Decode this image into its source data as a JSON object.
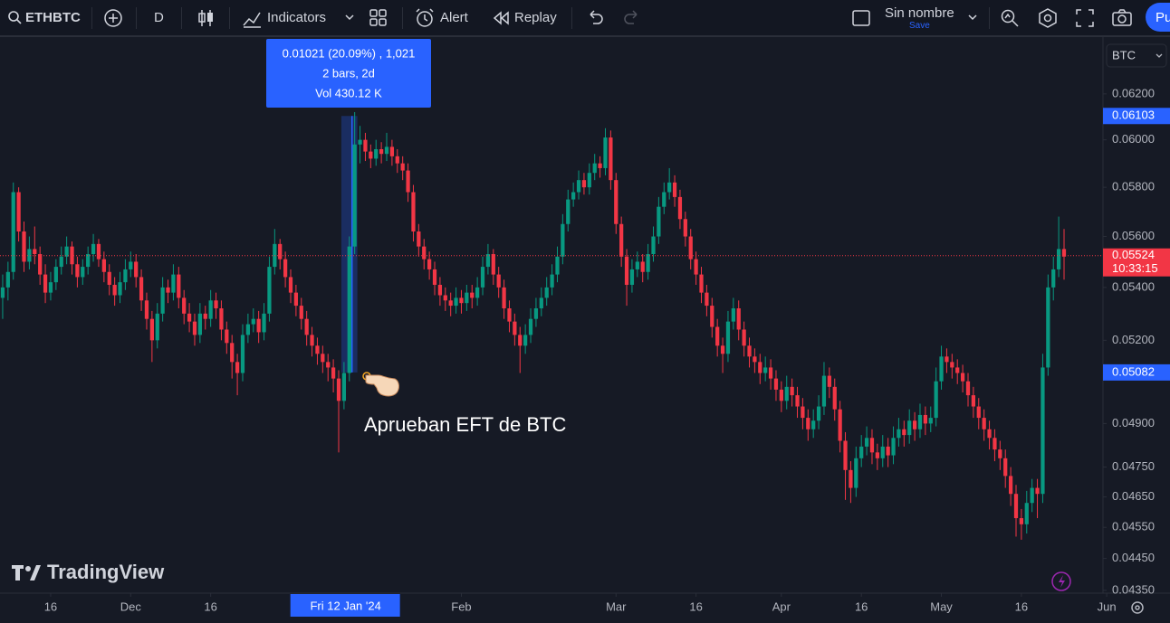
{
  "toolbar": {
    "symbol": "ETHBTC",
    "interval": "D",
    "indicators": "Indicators",
    "alert": "Alert",
    "replay": "Replay",
    "layout_name": "Sin nombre",
    "save": "Save",
    "publish": "Pu"
  },
  "chart_data": {
    "type": "candlestick",
    "currency": "BTC",
    "log_scale": true,
    "grid": false,
    "up_color": "#089981",
    "down_color": "#f23645",
    "ylim": [
      0.0433,
      0.0644
    ],
    "yticks": [
      {
        "value": 0.062,
        "label": "0.06200"
      },
      {
        "value": 0.06,
        "label": "0.06000"
      },
      {
        "value": 0.058,
        "label": "0.05800"
      },
      {
        "value": 0.056,
        "label": "0.05600"
      },
      {
        "value": 0.054,
        "label": "0.05400"
      },
      {
        "value": 0.052,
        "label": "0.05200"
      },
      {
        "value": 0.049,
        "label": "0.04900"
      },
      {
        "value": 0.0475,
        "label": "0.04750"
      },
      {
        "value": 0.0465,
        "label": "0.04650"
      },
      {
        "value": 0.0455,
        "label": "0.04550"
      },
      {
        "value": 0.0445,
        "label": "0.04450"
      },
      {
        "value": 0.0435,
        "label": "0.04350"
      }
    ],
    "xlim": [
      -0.5,
      206.3
    ],
    "xticks": [
      {
        "value": 9,
        "label": "16"
      },
      {
        "value": 24,
        "label": "Dec"
      },
      {
        "value": 39,
        "label": "16"
      },
      {
        "value": 86,
        "label": "Feb"
      },
      {
        "value": 115,
        "label": "Mar"
      },
      {
        "value": 130,
        "label": "16"
      },
      {
        "value": 146,
        "label": "Apr"
      },
      {
        "value": 161,
        "label": "16"
      },
      {
        "value": 176,
        "label": "May"
      },
      {
        "value": 191,
        "label": "16"
      },
      {
        "value": 207,
        "label": "Jun"
      }
    ],
    "crosshair": {
      "value": 66,
      "label": "Fri 12 Jan '24"
    },
    "last_price": 0.05524,
    "countdown": "10:33:15",
    "measure": {
      "from": 0.05082,
      "to": 0.06103,
      "lines": [
        "0.01021 (20.09%) , 1,021",
        "2 bars, 2d",
        "Vol 430.12 K"
      ]
    },
    "annotation": "Aprueban EFT de BTC",
    "watermark": "TradingView",
    "ohlc": [
      [
        0.0536,
        0.0545,
        0.0528,
        0.054
      ],
      [
        0.054,
        0.055,
        0.0535,
        0.0546
      ],
      [
        0.0546,
        0.0582,
        0.0543,
        0.0578
      ],
      [
        0.0578,
        0.058,
        0.0558,
        0.0562
      ],
      [
        0.0562,
        0.0566,
        0.0546,
        0.055
      ],
      [
        0.055,
        0.056,
        0.0547,
        0.0555
      ],
      [
        0.0555,
        0.0564,
        0.0549,
        0.0553
      ],
      [
        0.0553,
        0.0556,
        0.0541,
        0.0545
      ],
      [
        0.0545,
        0.0549,
        0.0534,
        0.0538
      ],
      [
        0.0538,
        0.0546,
        0.0535,
        0.0542
      ],
      [
        0.0542,
        0.0551,
        0.0539,
        0.0548
      ],
      [
        0.0548,
        0.0556,
        0.0545,
        0.0552
      ],
      [
        0.0552,
        0.056,
        0.0549,
        0.0556
      ],
      [
        0.0556,
        0.0558,
        0.0545,
        0.0549
      ],
      [
        0.0549,
        0.0552,
        0.054,
        0.0544
      ],
      [
        0.0544,
        0.0551,
        0.0541,
        0.0548
      ],
      [
        0.0548,
        0.0556,
        0.0545,
        0.0553
      ],
      [
        0.0553,
        0.0561,
        0.055,
        0.0557
      ],
      [
        0.0557,
        0.0559,
        0.0548,
        0.0551
      ],
      [
        0.0551,
        0.0554,
        0.0542,
        0.0546
      ],
      [
        0.0546,
        0.0549,
        0.0537,
        0.0541
      ],
      [
        0.0541,
        0.0544,
        0.0533,
        0.0537
      ],
      [
        0.0537,
        0.0546,
        0.0534,
        0.0542
      ],
      [
        0.0542,
        0.0551,
        0.0539,
        0.0547
      ],
      [
        0.0547,
        0.0554,
        0.0544,
        0.055
      ],
      [
        0.055,
        0.0553,
        0.054,
        0.0544
      ],
      [
        0.0544,
        0.0547,
        0.0531,
        0.0535
      ],
      [
        0.0535,
        0.0538,
        0.0524,
        0.0528
      ],
      [
        0.0528,
        0.0531,
        0.0512,
        0.052
      ],
      [
        0.052,
        0.0534,
        0.0517,
        0.053
      ],
      [
        0.053,
        0.0544,
        0.0527,
        0.054
      ],
      [
        0.054,
        0.0543,
        0.0534,
        0.0538
      ],
      [
        0.0538,
        0.0549,
        0.0535,
        0.0545
      ],
      [
        0.0545,
        0.0548,
        0.0532,
        0.0536
      ],
      [
        0.0536,
        0.0539,
        0.0526,
        0.053
      ],
      [
        0.053,
        0.0534,
        0.0523,
        0.0527
      ],
      [
        0.0527,
        0.053,
        0.0518,
        0.0522
      ],
      [
        0.0522,
        0.0534,
        0.0519,
        0.053
      ],
      [
        0.053,
        0.0533,
        0.0524,
        0.0528
      ],
      [
        0.0528,
        0.0539,
        0.0525,
        0.0535
      ],
      [
        0.0535,
        0.0538,
        0.0528,
        0.0532
      ],
      [
        0.0532,
        0.0535,
        0.052,
        0.0524
      ],
      [
        0.0524,
        0.0527,
        0.0515,
        0.0519
      ],
      [
        0.0519,
        0.0522,
        0.0506,
        0.0512
      ],
      [
        0.0512,
        0.0515,
        0.05,
        0.0508
      ],
      [
        0.0508,
        0.0526,
        0.0505,
        0.0522
      ],
      [
        0.0522,
        0.053,
        0.0519,
        0.0526
      ],
      [
        0.0526,
        0.0532,
        0.0523,
        0.0528
      ],
      [
        0.0528,
        0.0531,
        0.0519,
        0.0523
      ],
      [
        0.0523,
        0.0534,
        0.052,
        0.053
      ],
      [
        0.053,
        0.0552,
        0.0527,
        0.0548
      ],
      [
        0.0548,
        0.0563,
        0.0545,
        0.0557
      ],
      [
        0.0557,
        0.0559,
        0.0547,
        0.0551
      ],
      [
        0.0551,
        0.0554,
        0.054,
        0.0544
      ],
      [
        0.0544,
        0.0547,
        0.0534,
        0.0538
      ],
      [
        0.0538,
        0.0541,
        0.0529,
        0.0533
      ],
      [
        0.0533,
        0.0536,
        0.0524,
        0.0528
      ],
      [
        0.0528,
        0.0531,
        0.0518,
        0.0522
      ],
      [
        0.0522,
        0.0525,
        0.0514,
        0.0518
      ],
      [
        0.0518,
        0.0521,
        0.0511,
        0.0515
      ],
      [
        0.0515,
        0.0518,
        0.0508,
        0.0512
      ],
      [
        0.0512,
        0.0515,
        0.0505,
        0.051
      ],
      [
        0.051,
        0.0513,
        0.0501,
        0.0506
      ],
      [
        0.0506,
        0.0509,
        0.048,
        0.0498
      ],
      [
        0.0498,
        0.0512,
        0.0495,
        0.0508
      ],
      [
        0.0508,
        0.056,
        0.0505,
        0.0556
      ],
      [
        0.0556,
        0.0612,
        0.0553,
        0.0598
      ],
      [
        0.0598,
        0.0606,
        0.059,
        0.06
      ],
      [
        0.06,
        0.0603,
        0.0591,
        0.0595
      ],
      [
        0.0595,
        0.0598,
        0.0588,
        0.0592
      ],
      [
        0.0592,
        0.06,
        0.0589,
        0.0596
      ],
      [
        0.0596,
        0.0599,
        0.059,
        0.0594
      ],
      [
        0.0594,
        0.0603,
        0.0591,
        0.0597
      ],
      [
        0.0597,
        0.06,
        0.0589,
        0.0593
      ],
      [
        0.0593,
        0.0596,
        0.0586,
        0.059
      ],
      [
        0.059,
        0.0593,
        0.0583,
        0.0587
      ],
      [
        0.0587,
        0.059,
        0.0574,
        0.0578
      ],
      [
        0.0578,
        0.0581,
        0.0558,
        0.0562
      ],
      [
        0.0562,
        0.0565,
        0.0552,
        0.0556
      ],
      [
        0.0556,
        0.0559,
        0.0547,
        0.0551
      ],
      [
        0.0551,
        0.0554,
        0.0543,
        0.0547
      ],
      [
        0.0547,
        0.055,
        0.0537,
        0.0541
      ],
      [
        0.0541,
        0.0544,
        0.0533,
        0.0537
      ],
      [
        0.0537,
        0.054,
        0.0531,
        0.0535
      ],
      [
        0.0535,
        0.0538,
        0.0529,
        0.0533
      ],
      [
        0.0533,
        0.054,
        0.053,
        0.0536
      ],
      [
        0.0536,
        0.0539,
        0.053,
        0.0534
      ],
      [
        0.0534,
        0.0541,
        0.0531,
        0.0538
      ],
      [
        0.0538,
        0.0541,
        0.0532,
        0.0536
      ],
      [
        0.0536,
        0.0544,
        0.0533,
        0.054
      ],
      [
        0.054,
        0.0552,
        0.0537,
        0.0548
      ],
      [
        0.0548,
        0.0557,
        0.0545,
        0.0553
      ],
      [
        0.0553,
        0.0555,
        0.0541,
        0.0545
      ],
      [
        0.0545,
        0.0548,
        0.0536,
        0.054
      ],
      [
        0.054,
        0.0543,
        0.0528,
        0.0532
      ],
      [
        0.0532,
        0.0535,
        0.0523,
        0.0527
      ],
      [
        0.0527,
        0.053,
        0.0518,
        0.0522
      ],
      [
        0.0522,
        0.0525,
        0.0508,
        0.0518
      ],
      [
        0.0518,
        0.0526,
        0.0515,
        0.0522
      ],
      [
        0.0522,
        0.0532,
        0.0519,
        0.0528
      ],
      [
        0.0528,
        0.0536,
        0.0525,
        0.0532
      ],
      [
        0.0532,
        0.054,
        0.0529,
        0.0536
      ],
      [
        0.0536,
        0.0544,
        0.0533,
        0.054
      ],
      [
        0.054,
        0.0549,
        0.0537,
        0.0545
      ],
      [
        0.0545,
        0.0556,
        0.0542,
        0.0552
      ],
      [
        0.0552,
        0.0569,
        0.0549,
        0.0565
      ],
      [
        0.0565,
        0.0579,
        0.0562,
        0.0575
      ],
      [
        0.0575,
        0.0582,
        0.0572,
        0.0578
      ],
      [
        0.0578,
        0.0587,
        0.0575,
        0.0583
      ],
      [
        0.0583,
        0.0586,
        0.0577,
        0.058
      ],
      [
        0.058,
        0.059,
        0.0577,
        0.0586
      ],
      [
        0.0586,
        0.0594,
        0.0583,
        0.059
      ],
      [
        0.059,
        0.0593,
        0.0584,
        0.0588
      ],
      [
        0.0588,
        0.0605,
        0.0585,
        0.0601
      ],
      [
        0.0601,
        0.0604,
        0.0579,
        0.0583
      ],
      [
        0.0583,
        0.0586,
        0.0561,
        0.0565
      ],
      [
        0.0565,
        0.0568,
        0.0548,
        0.0552
      ],
      [
        0.0552,
        0.0555,
        0.0533,
        0.0541
      ],
      [
        0.0541,
        0.0551,
        0.0538,
        0.0547
      ],
      [
        0.0547,
        0.0554,
        0.0544,
        0.055
      ],
      [
        0.055,
        0.0553,
        0.0542,
        0.0546
      ],
      [
        0.0546,
        0.0557,
        0.0543,
        0.0553
      ],
      [
        0.0553,
        0.0564,
        0.055,
        0.056
      ],
      [
        0.056,
        0.0576,
        0.0557,
        0.0572
      ],
      [
        0.0572,
        0.0582,
        0.0569,
        0.0578
      ],
      [
        0.0578,
        0.0588,
        0.0575,
        0.0582
      ],
      [
        0.0582,
        0.0585,
        0.0572,
        0.0576
      ],
      [
        0.0576,
        0.0579,
        0.0563,
        0.0567
      ],
      [
        0.0567,
        0.057,
        0.0556,
        0.056
      ],
      [
        0.056,
        0.0563,
        0.0547,
        0.0551
      ],
      [
        0.0551,
        0.0554,
        0.0541,
        0.0545
      ],
      [
        0.0545,
        0.0548,
        0.0534,
        0.0538
      ],
      [
        0.0538,
        0.0541,
        0.0529,
        0.0533
      ],
      [
        0.0533,
        0.0536,
        0.0521,
        0.0525
      ],
      [
        0.0525,
        0.0528,
        0.0514,
        0.0518
      ],
      [
        0.0518,
        0.0521,
        0.0508,
        0.0515
      ],
      [
        0.0515,
        0.0531,
        0.0512,
        0.0527
      ],
      [
        0.0527,
        0.0536,
        0.0524,
        0.0532
      ],
      [
        0.0532,
        0.0535,
        0.052,
        0.0524
      ],
      [
        0.0524,
        0.0527,
        0.0514,
        0.0518
      ],
      [
        0.0518,
        0.0521,
        0.051,
        0.0514
      ],
      [
        0.0514,
        0.0517,
        0.0508,
        0.0512
      ],
      [
        0.0512,
        0.0515,
        0.0504,
        0.0508
      ],
      [
        0.0508,
        0.0514,
        0.0505,
        0.051
      ],
      [
        0.051,
        0.0513,
        0.0502,
        0.0506
      ],
      [
        0.0506,
        0.0509,
        0.0498,
        0.0502
      ],
      [
        0.0502,
        0.0505,
        0.0494,
        0.0498
      ],
      [
        0.0498,
        0.0507,
        0.0495,
        0.0503
      ],
      [
        0.0503,
        0.0506,
        0.0496,
        0.05
      ],
      [
        0.05,
        0.0503,
        0.0492,
        0.0496
      ],
      [
        0.0496,
        0.0499,
        0.0488,
        0.0492
      ],
      [
        0.0492,
        0.0495,
        0.0484,
        0.0488
      ],
      [
        0.0488,
        0.0495,
        0.0485,
        0.0491
      ],
      [
        0.0491,
        0.05,
        0.0488,
        0.0496
      ],
      [
        0.0496,
        0.0512,
        0.0493,
        0.0507
      ],
      [
        0.0507,
        0.051,
        0.0499,
        0.0503
      ],
      [
        0.0503,
        0.0506,
        0.0491,
        0.0495
      ],
      [
        0.0495,
        0.0498,
        0.048,
        0.0484
      ],
      [
        0.0484,
        0.0487,
        0.0464,
        0.0474
      ],
      [
        0.0474,
        0.0477,
        0.0463,
        0.0468
      ],
      [
        0.0468,
        0.0482,
        0.0465,
        0.0478
      ],
      [
        0.0478,
        0.0486,
        0.0475,
        0.0482
      ],
      [
        0.0482,
        0.0489,
        0.0479,
        0.0485
      ],
      [
        0.0485,
        0.0488,
        0.0476,
        0.048
      ],
      [
        0.048,
        0.0483,
        0.0474,
        0.0478
      ],
      [
        0.0478,
        0.0486,
        0.0475,
        0.0482
      ],
      [
        0.0482,
        0.0485,
        0.0475,
        0.0479
      ],
      [
        0.0479,
        0.0489,
        0.0476,
        0.0485
      ],
      [
        0.0485,
        0.0492,
        0.0482,
        0.0488
      ],
      [
        0.0488,
        0.0491,
        0.0482,
        0.0486
      ],
      [
        0.0486,
        0.0495,
        0.0483,
        0.0491
      ],
      [
        0.0491,
        0.0494,
        0.0484,
        0.0488
      ],
      [
        0.0488,
        0.0497,
        0.0485,
        0.0493
      ],
      [
        0.0493,
        0.0496,
        0.0486,
        0.049
      ],
      [
        0.049,
        0.0496,
        0.0487,
        0.0492
      ],
      [
        0.0492,
        0.051,
        0.0489,
        0.0505
      ],
      [
        0.0505,
        0.0518,
        0.0502,
        0.0514
      ],
      [
        0.0514,
        0.0517,
        0.0508,
        0.0512
      ],
      [
        0.0512,
        0.0515,
        0.0506,
        0.051
      ],
      [
        0.051,
        0.0513,
        0.0504,
        0.0508
      ],
      [
        0.0508,
        0.0511,
        0.0501,
        0.0505
      ],
      [
        0.0505,
        0.0508,
        0.0496,
        0.05
      ],
      [
        0.05,
        0.0503,
        0.0492,
        0.0496
      ],
      [
        0.0496,
        0.0499,
        0.0488,
        0.0492
      ],
      [
        0.0492,
        0.0495,
        0.0484,
        0.0488
      ],
      [
        0.0488,
        0.0491,
        0.0481,
        0.0485
      ],
      [
        0.0485,
        0.0488,
        0.0477,
        0.0481
      ],
      [
        0.0481,
        0.0484,
        0.0474,
        0.0478
      ],
      [
        0.0478,
        0.0481,
        0.0468,
        0.0472
      ],
      [
        0.0472,
        0.0475,
        0.0462,
        0.0466
      ],
      [
        0.0466,
        0.0469,
        0.0452,
        0.0458
      ],
      [
        0.0458,
        0.0461,
        0.0451,
        0.0456
      ],
      [
        0.0456,
        0.0467,
        0.0453,
        0.0463
      ],
      [
        0.0463,
        0.0471,
        0.046,
        0.0468
      ],
      [
        0.0468,
        0.0471,
        0.0458,
        0.0466
      ],
      [
        0.0466,
        0.0515,
        0.0463,
        0.051
      ],
      [
        0.051,
        0.0545,
        0.0507,
        0.054
      ],
      [
        0.054,
        0.0552,
        0.0535,
        0.0547
      ],
      [
        0.0547,
        0.0568,
        0.0544,
        0.0555
      ],
      [
        0.0555,
        0.0563,
        0.0543,
        0.0552
      ]
    ]
  }
}
